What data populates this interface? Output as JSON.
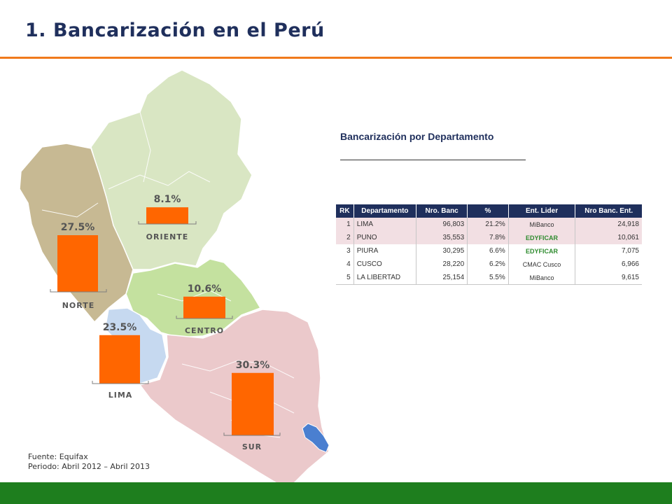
{
  "page": {
    "title": "1. Bancarización en el Perú"
  },
  "chart_data": {
    "type": "bar",
    "categories": [
      "ORIENTE",
      "NORTE",
      "CENTRO",
      "LIMA",
      "SUR"
    ],
    "values": [
      8.1,
      27.5,
      10.6,
      23.5,
      30.3
    ],
    "value_labels": [
      "8.1%",
      "27.5%",
      "10.6%",
      "23.5%",
      "30.3%"
    ],
    "unit": "%",
    "bar_color": "#ff6600"
  },
  "table": {
    "title": "Bancarización por Departamento",
    "headers": [
      "RK",
      "Departamento",
      "Nro. Banc",
      "%",
      "Ent. Lider",
      "Nro Banc. Ent."
    ],
    "rows": [
      [
        "1",
        "LIMA",
        "96,803",
        "21.2%",
        "MiBanco",
        "24,918"
      ],
      [
        "2",
        "PUNO",
        "35,553",
        "7.8%",
        "EDYFICAR",
        "10,061"
      ],
      [
        "3",
        "PIURA",
        "30,295",
        "6.6%",
        "EDYFICAR",
        "7,075"
      ],
      [
        "4",
        "CUSCO",
        "28,220",
        "6.2%",
        "CMAC Cusco",
        "6,966"
      ],
      [
        "5",
        "LA LIBERTAD",
        "25,154",
        "5.5%",
        "MiBanco",
        "9,615"
      ]
    ],
    "highlight_rows": [
      0,
      1
    ],
    "green_leader_color": "#2e8b2e",
    "header_color": "#1f2f5c",
    "highlight_color": "#f2dfe3"
  },
  "source": {
    "line1": "Fuente: Equifax",
    "line2": "Periodo: Abril 2012 – Abril 2013"
  },
  "colors": {
    "title": "#1f2f5c",
    "accent_rule": "#f07a1c",
    "footer_bar": "#1e7e1e",
    "region_oriente": "#d9e6c3",
    "region_norte": "#c7b993",
    "region_centro": "#c4e19f",
    "region_lima": "#c6d9f0",
    "region_sur": "#ebc9cb",
    "lake": "#4a7fd0"
  }
}
